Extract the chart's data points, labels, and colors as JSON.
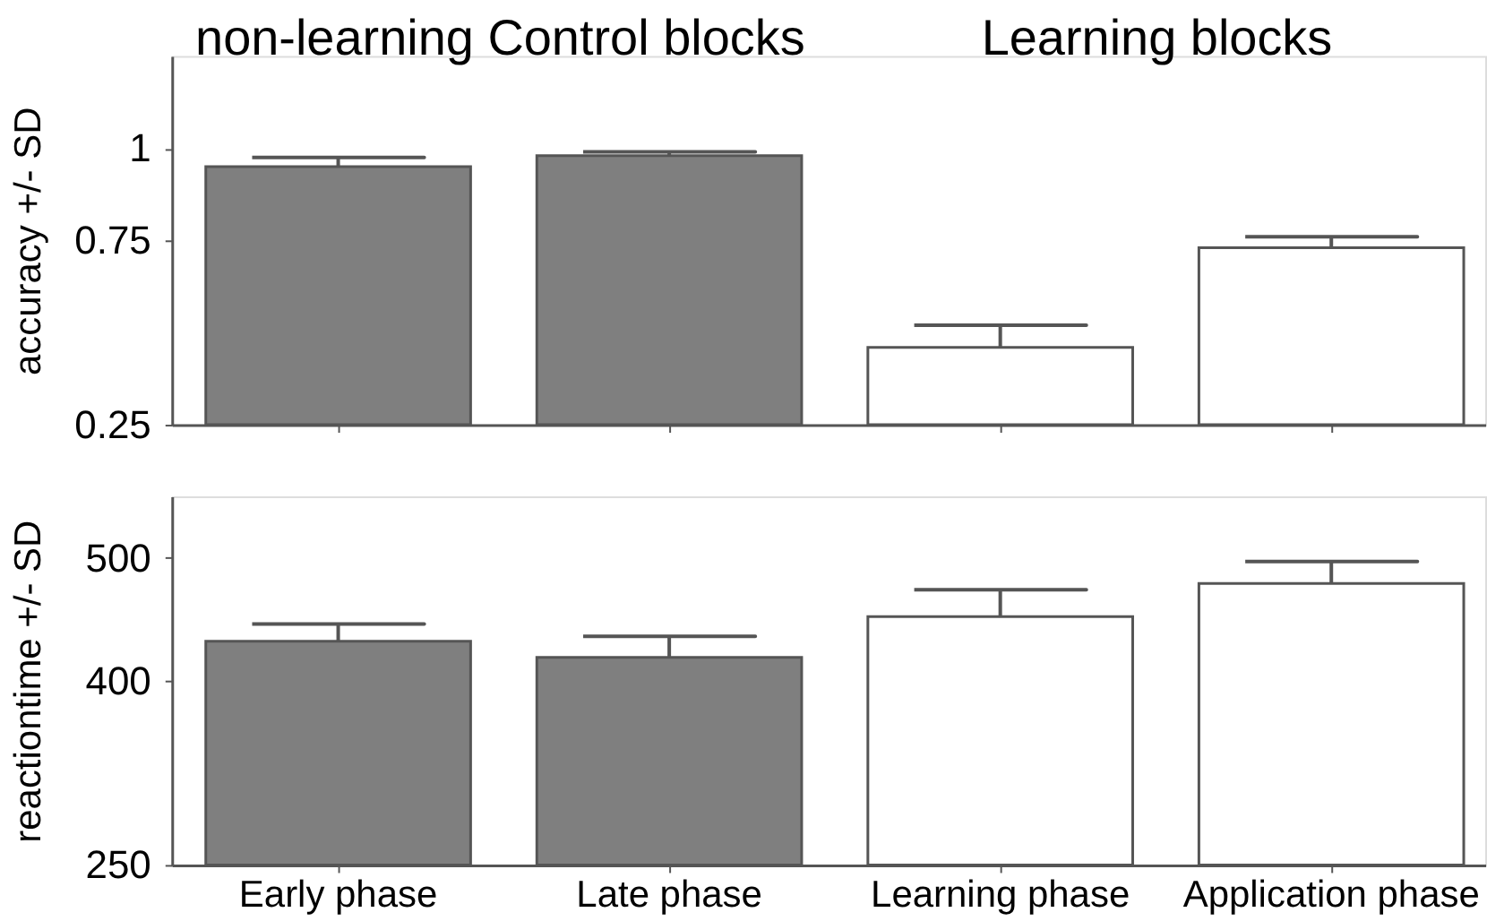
{
  "chart_data": [
    {
      "type": "bar",
      "annotations": [
        "non-learning Control blocks",
        "Learning blocks"
      ],
      "ylabel": "accuracy +/- SD",
      "categories": [
        null,
        null,
        null,
        null
      ],
      "values": [
        0.95,
        0.98,
        0.46,
        0.73
      ],
      "colors": [
        "#7f7f7f",
        "#7f7f7f",
        "#ffffff",
        "#ffffff"
      ],
      "errors": [
        [
          0.95,
          0.975
        ],
        [
          0.98,
          0.99
        ],
        [
          0.46,
          0.52
        ],
        [
          0.73,
          0.76
        ]
      ],
      "ylim": [
        0.25,
        1.25
      ],
      "yticks": [
        0.25,
        0.75,
        1
      ],
      "tick_labels": "y"
    },
    {
      "type": "bar",
      "ylabel": "reactiontime +/- SD",
      "categories": [
        "Early phase",
        "Late phase",
        "Learning phase",
        "Application phase"
      ],
      "values": [
        432,
        419,
        452,
        479
      ],
      "colors": [
        "#7f7f7f",
        "#7f7f7f",
        "#ffffff",
        "#ffffff"
      ],
      "errors": [
        [
          432,
          446
        ],
        [
          419,
          436
        ],
        [
          452,
          474
        ],
        [
          479,
          497
        ]
      ],
      "ylim": [
        250,
        550
      ],
      "yticks": [
        250,
        400,
        500
      ]
    }
  ]
}
